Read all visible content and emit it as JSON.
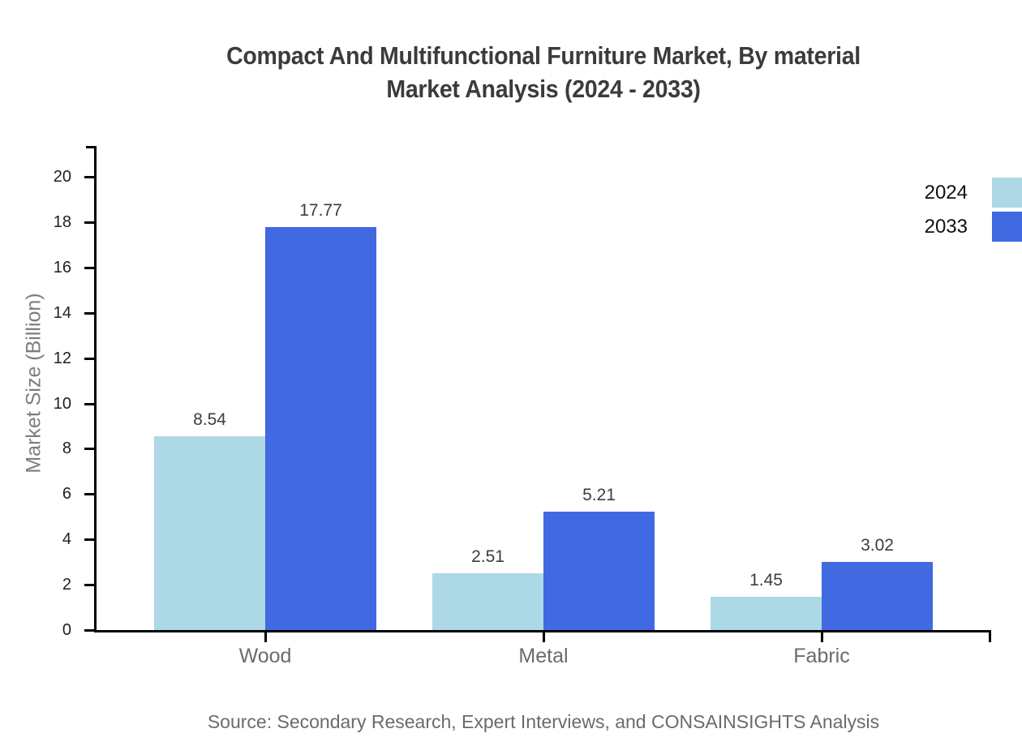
{
  "title": {
    "line1": "Compact And Multifunctional Furniture Market, By material",
    "line2": "Market Analysis (2024 - 2033)"
  },
  "source": "Source: Secondary Research, Expert Interviews, and CONSAINSIGHTS Analysis",
  "chart_data": {
    "type": "bar",
    "title": "Compact And Multifunctional Furniture Market, By material Market Analysis (2024 - 2033)",
    "categories": [
      "Wood",
      "Metal",
      "Fabric"
    ],
    "series": [
      {
        "name": "2024",
        "color": "#ADD8E6",
        "values": [
          8.54,
          2.51,
          1.45
        ]
      },
      {
        "name": "2033",
        "color": "#4169E1",
        "values": [
          17.77,
          5.21,
          3.02
        ]
      }
    ],
    "xlabel": "",
    "ylabel": "Market Size (Billion)",
    "ylim": [
      0,
      21.4
    ],
    "yticks": [
      0,
      2,
      4,
      6,
      8,
      10,
      12,
      14,
      16,
      18,
      20
    ],
    "grid": false,
    "legend_position": "top-right",
    "value_labels": true,
    "value_label_format": "0.00"
  }
}
